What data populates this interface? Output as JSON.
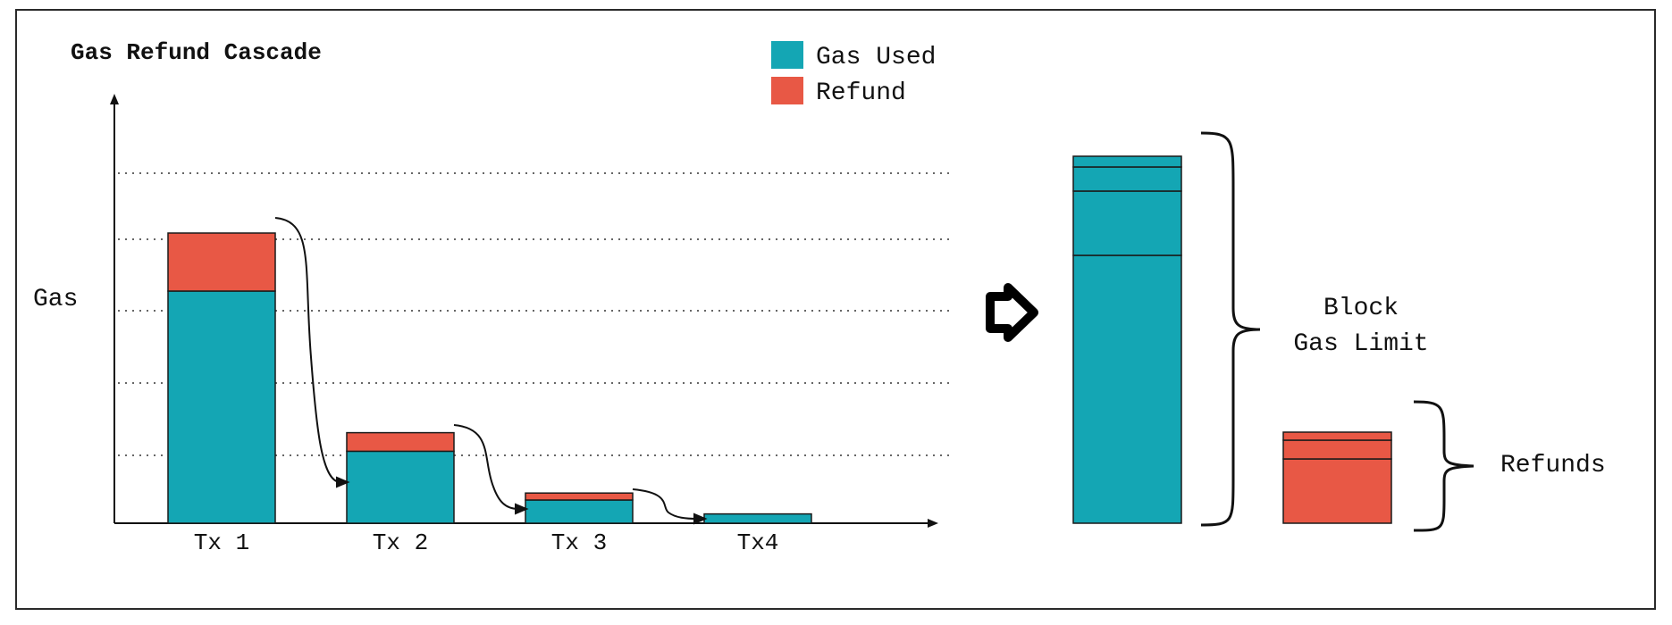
{
  "title": "Gas Refund Cascade",
  "y_axis_label": "Gas",
  "legend": [
    {
      "label": "Gas Used",
      "color": "#14a6b4"
    },
    {
      "label": "Refund",
      "color": "#e85845"
    }
  ],
  "colors": {
    "gas_used": "#14a6b4",
    "refund": "#e85845",
    "stroke": "#1a1a1a"
  },
  "chart_data": {
    "type": "bar",
    "categories": [
      "Tx 1",
      "Tx 2",
      "Tx 3",
      "Tx4"
    ],
    "series": [
      {
        "name": "Gas Used",
        "values": [
          100,
          31,
          10,
          4
        ]
      },
      {
        "name": "Refund",
        "values": [
          25,
          8,
          3,
          0
        ]
      }
    ],
    "grid": true
  },
  "block": {
    "label_line1": "Block",
    "label_line2": "Gas Limit",
    "stack_values": [
      100,
      24,
      9,
      4
    ]
  },
  "refunds": {
    "label": "Refunds",
    "stack_values": [
      24,
      7,
      3
    ]
  },
  "arrow_icon": "right-arrow-icon"
}
